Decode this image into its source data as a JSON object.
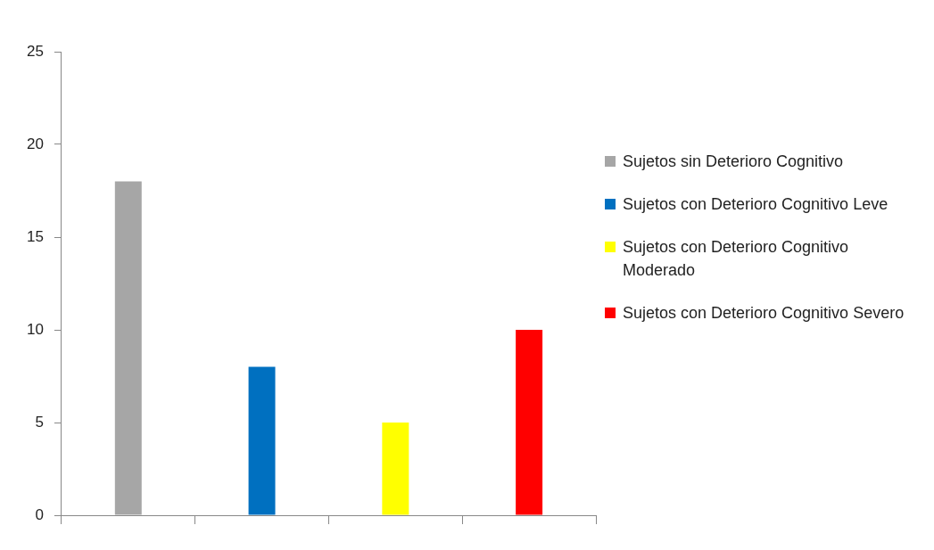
{
  "chart_data": {
    "type": "bar",
    "categories": [
      null,
      null,
      null,
      null
    ],
    "series": [
      {
        "name": "Sujetos sin Deterioro Cognitivo",
        "color": "#a6a6a6",
        "values": [
          18,
          null,
          null,
          null
        ]
      },
      {
        "name": "Sujetos con Deterioro Cognitivo Leve",
        "color": "#0070c0",
        "values": [
          null,
          8,
          null,
          null
        ]
      },
      {
        "name": "Sujetos con Deterioro Cognitivo Moderado",
        "color": "#ffff00",
        "values": [
          null,
          null,
          5,
          null
        ]
      },
      {
        "name": "Sujetos con Deterioro Cognitivo Severo",
        "color": "#ff0000",
        "values": [
          null,
          null,
          null,
          10
        ]
      }
    ],
    "ylim": [
      0,
      25
    ],
    "yticks": [
      0,
      5,
      10,
      15,
      20,
      25
    ],
    "grid": false,
    "legend": "right",
    "tick_labels": "y"
  }
}
